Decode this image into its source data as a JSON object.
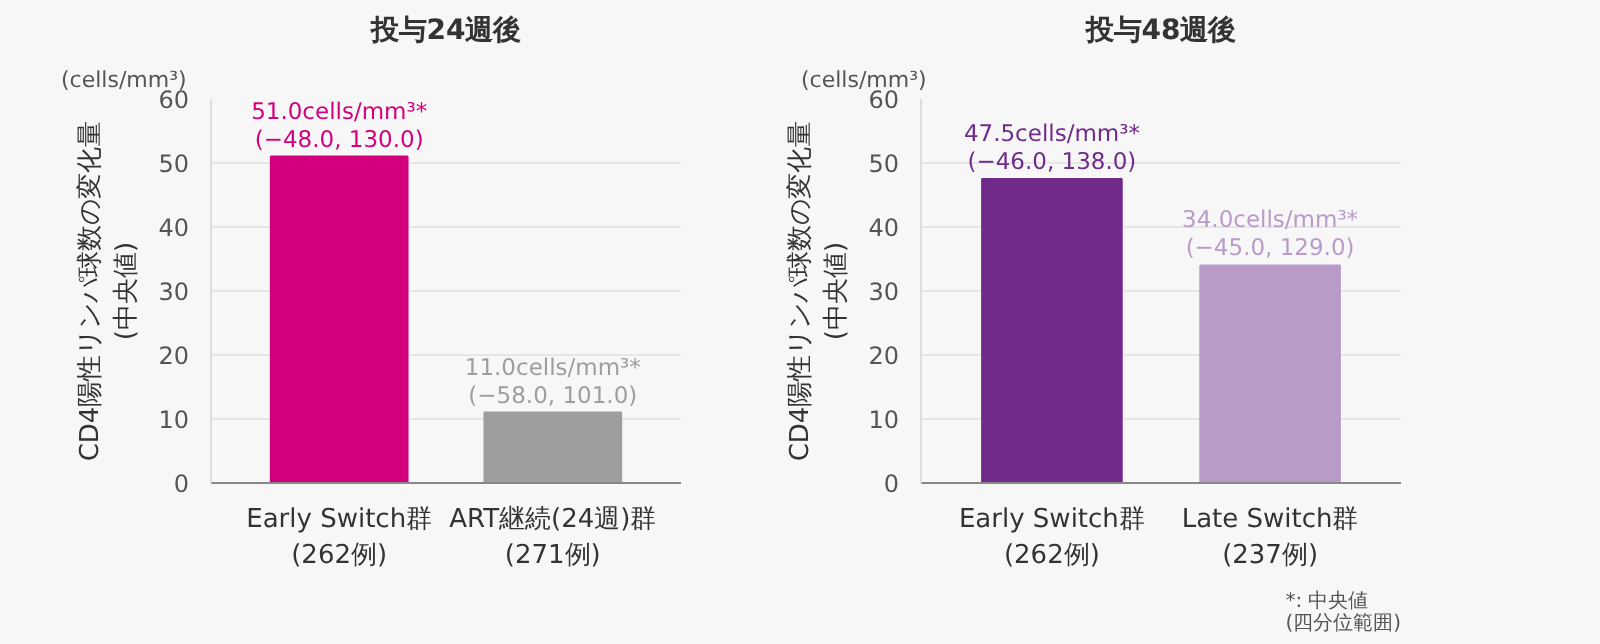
{
  "chart_data": [
    {
      "type": "bar",
      "title": "投与24週後",
      "categories": [
        "Early Switch群\n(262例)",
        "ART継続(24週)群\n(271例)"
      ],
      "values": [
        51.0,
        11.0
      ],
      "colors": [
        "#d3007d",
        "#9e9e9e"
      ],
      "value_labels": [
        "51.0cells/mm³*\n(−48.0, 130.0)",
        "11.0cells/mm³*\n(−58.0, 101.0)"
      ],
      "ylabel": "CD4陽性リンパ球数の変化量\n(中央値)",
      "ylim": [
        0,
        60
      ],
      "yticks": [
        0,
        10,
        20,
        30,
        40,
        50,
        60
      ],
      "grid": "y",
      "annotations": [
        "(cells/mm³)"
      ]
    },
    {
      "type": "bar",
      "title": "投与48週後",
      "categories": [
        "Early Switch群\n(262例)",
        "Late Switch群\n(237例)"
      ],
      "values": [
        47.5,
        34.0
      ],
      "colors": [
        "#6f2a8a",
        "#b99bc9"
      ],
      "value_labels": [
        "47.5cells/mm³*\n(−46.0, 138.0)",
        "34.0cells/mm³*\n(−45.0, 129.0)"
      ],
      "ylabel": "CD4陽性リンパ球数の変化量\n(中央値)",
      "ylim": [
        0,
        60
      ],
      "yticks": [
        0,
        10,
        20,
        30,
        40,
        50,
        60
      ],
      "grid": "y",
      "annotations": [
        "(cells/mm³)",
        "*: 中央値\n(四分位範囲)"
      ]
    }
  ]
}
